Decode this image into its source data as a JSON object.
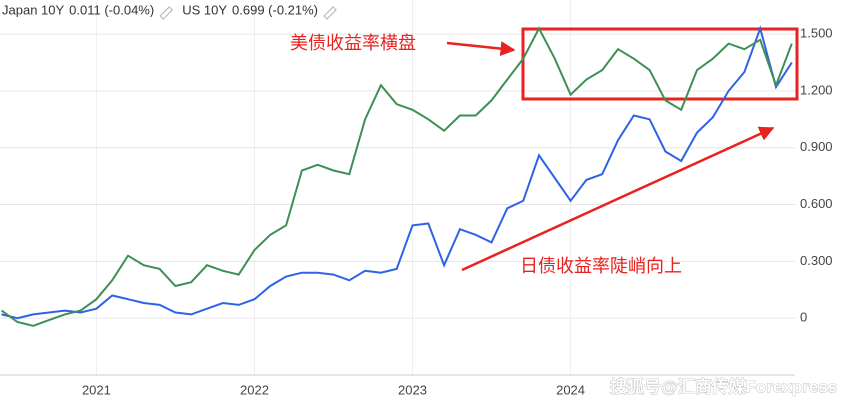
{
  "chart_data": {
    "type": "line",
    "x": [
      2020.4,
      2020.5,
      2020.6,
      2020.7,
      2020.8,
      2020.9,
      2021.0,
      2021.1,
      2021.2,
      2021.3,
      2021.4,
      2021.5,
      2021.6,
      2021.7,
      2021.8,
      2021.9,
      2022.0,
      2022.1,
      2022.2,
      2022.3,
      2022.4,
      2022.5,
      2022.6,
      2022.7,
      2022.8,
      2022.9,
      2023.0,
      2023.1,
      2023.2,
      2023.3,
      2023.4,
      2023.5,
      2023.6,
      2023.7,
      2023.8,
      2023.9,
      2024.0,
      2024.1,
      2024.2,
      2024.3,
      2024.4,
      2024.5,
      2024.6,
      2024.7,
      2024.8,
      2024.9,
      2025.0,
      2025.1,
      2025.2,
      2025.3,
      2025.4
    ],
    "series": [
      {
        "name": "Japan 10Y",
        "quote": "0.011 (-0.04%)",
        "color": "#2f62e6",
        "values": [
          0.02,
          0.0,
          0.02,
          0.03,
          0.04,
          0.03,
          0.05,
          0.12,
          0.1,
          0.08,
          0.07,
          0.03,
          0.02,
          0.05,
          0.08,
          0.07,
          0.1,
          0.17,
          0.22,
          0.24,
          0.24,
          0.23,
          0.2,
          0.25,
          0.24,
          0.26,
          0.49,
          0.5,
          0.28,
          0.47,
          0.44,
          0.4,
          0.58,
          0.62,
          0.86,
          0.74,
          0.62,
          0.73,
          0.76,
          0.94,
          1.07,
          1.05,
          0.88,
          0.83,
          0.98,
          1.06,
          1.2,
          1.3,
          1.53,
          1.22,
          1.35
        ]
      },
      {
        "name": "US 10Y",
        "quote": "0.699 (-0.21%)",
        "color": "#3d8f55",
        "values": [
          0.04,
          -0.02,
          -0.04,
          -0.01,
          0.02,
          0.04,
          0.1,
          0.2,
          0.33,
          0.28,
          0.26,
          0.17,
          0.19,
          0.28,
          0.25,
          0.23,
          0.36,
          0.44,
          0.49,
          0.78,
          0.81,
          0.78,
          0.76,
          1.05,
          1.23,
          1.13,
          1.1,
          1.05,
          0.99,
          1.07,
          1.07,
          1.15,
          1.26,
          1.37,
          1.53,
          1.37,
          1.18,
          1.26,
          1.31,
          1.42,
          1.37,
          1.31,
          1.15,
          1.1,
          1.31,
          1.37,
          1.45,
          1.42,
          1.47,
          1.23,
          1.45
        ]
      }
    ],
    "xlim": [
      2020.39,
      2025.42
    ],
    "xticks": [
      2021,
      2022,
      2023,
      2024
    ],
    "ylim": [
      -0.3,
      1.68
    ],
    "yticks": [
      0,
      {
        "value": 0.3,
        "label": "0.300"
      },
      {
        "value": 0.6,
        "label": "0.600"
      },
      {
        "value": 0.9,
        "label": "0.900"
      },
      {
        "value": 1.2,
        "label": "1.200"
      },
      {
        "value": 1.5,
        "label": "1.500"
      }
    ],
    "grid": true,
    "annotations": [
      "美债收益率横盘",
      "日债收益率陡峭向上"
    ],
    "watermark": "搜狐号@汇商传媒Forexpress"
  }
}
